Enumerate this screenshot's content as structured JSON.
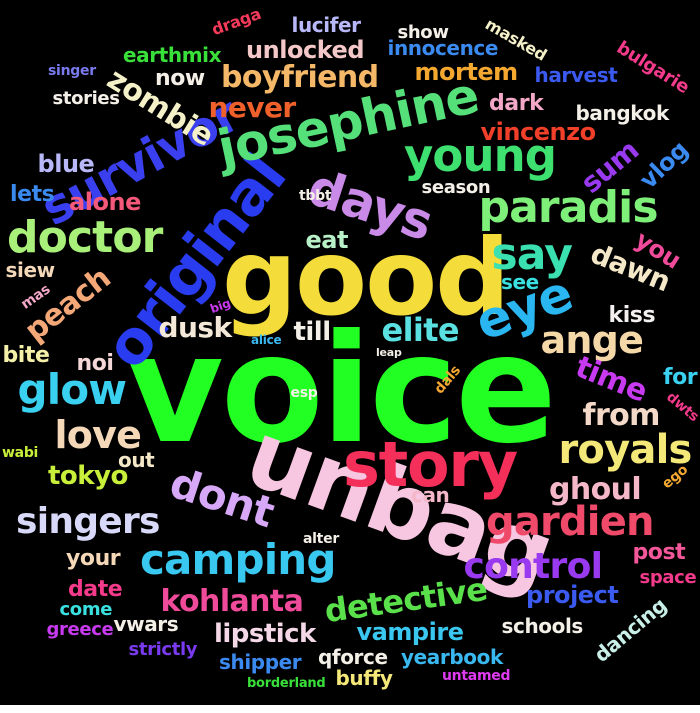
{
  "background": "#000000",
  "words": [
    {
      "text": "voice",
      "color": "#22ff22"
    },
    {
      "text": "good",
      "color": "#f4dc3a"
    },
    {
      "text": "unbag",
      "color": "#f7c6e0"
    },
    {
      "text": "original",
      "color": "#2a3cf0"
    },
    {
      "text": "story",
      "color": "#f4305a"
    },
    {
      "text": "survivor",
      "color": "#3a40f0"
    },
    {
      "text": "josephine",
      "color": "#55e07a"
    },
    {
      "text": "days",
      "color": "#c98ae8"
    },
    {
      "text": "young",
      "color": "#3ee070"
    },
    {
      "text": "paradis",
      "color": "#7ef07a"
    },
    {
      "text": "doctor",
      "color": "#a8f07a"
    },
    {
      "text": "say",
      "color": "#3ae0b0"
    },
    {
      "text": "eye",
      "color": "#2ab6f0"
    },
    {
      "text": "camping",
      "color": "#38c8f0"
    },
    {
      "text": "gardien",
      "color": "#f04a6a"
    },
    {
      "text": "dont",
      "color": "#d8a8f8"
    },
    {
      "text": "royals",
      "color": "#f4e878"
    },
    {
      "text": "glow",
      "color": "#3ad0f0"
    },
    {
      "text": "singers",
      "color": "#d8d8f8"
    },
    {
      "text": "control",
      "color": "#9a3af0"
    },
    {
      "text": "detective",
      "color": "#5ae04a"
    },
    {
      "text": "kohlanta",
      "color": "#f04a9a"
    },
    {
      "text": "ange",
      "color": "#f4d8a8"
    },
    {
      "text": "love",
      "color": "#f4d8b8"
    },
    {
      "text": "zombie",
      "color": "#f4f0c8"
    },
    {
      "text": "peach",
      "color": "#f4a878"
    },
    {
      "text": "elite",
      "color": "#5ae0e0"
    },
    {
      "text": "ghoul",
      "color": "#f4b8c8"
    },
    {
      "text": "dawn",
      "color": "#f4e8c8"
    },
    {
      "text": "from",
      "color": "#f4d8c8"
    },
    {
      "text": "time",
      "color": "#c83af0"
    },
    {
      "text": "boyfriend",
      "color": "#f4b868"
    },
    {
      "text": "unlocked",
      "color": "#f4c8c8"
    },
    {
      "text": "vincenzo",
      "color": "#f0402a"
    },
    {
      "text": "never",
      "color": "#f0602a"
    },
    {
      "text": "mortem",
      "color": "#f4a830"
    },
    {
      "text": "dusk",
      "color": "#f4e8d8"
    },
    {
      "text": "lipstick",
      "color": "#f4d8e8"
    },
    {
      "text": "vampire",
      "color": "#3ac8f0"
    },
    {
      "text": "project",
      "color": "#3a5af0"
    },
    {
      "text": "tokyo",
      "color": "#c8f03a"
    },
    {
      "text": "sum",
      "color": "#9a3af0"
    },
    {
      "text": "you",
      "color": "#f04a9a"
    },
    {
      "text": "blue",
      "color": "#b8b8f8"
    },
    {
      "text": "till",
      "color": "#f4f0e8"
    },
    {
      "text": "dark",
      "color": "#f4a8c8"
    },
    {
      "text": "alone",
      "color": "#f4587a"
    },
    {
      "text": "eat",
      "color": "#b8f0c8"
    },
    {
      "text": "vlog",
      "color": "#3a8af0"
    },
    {
      "text": "noi",
      "color": "#f4d8d8"
    },
    {
      "text": "kiss",
      "color": "#f4f0f0"
    },
    {
      "text": "your",
      "color": "#f4d8b8"
    },
    {
      "text": "post",
      "color": "#f4589a"
    },
    {
      "text": "date",
      "color": "#f43a8a"
    },
    {
      "text": "lets",
      "color": "#3a8af0"
    },
    {
      "text": "siew",
      "color": "#f4d8b8"
    },
    {
      "text": "see",
      "color": "#3ae0e0"
    },
    {
      "text": "bite",
      "color": "#f4f0a8"
    },
    {
      "text": "for",
      "color": "#3ad0f0"
    },
    {
      "text": "out",
      "color": "#f4e8c8"
    },
    {
      "text": "can",
      "color": "#f4b8c8"
    },
    {
      "text": "now",
      "color": "#f4f0e8"
    },
    {
      "text": "innocence",
      "color": "#3a8af0"
    },
    {
      "text": "harvest",
      "color": "#3a5af0"
    },
    {
      "text": "bangkok",
      "color": "#f4f0e8"
    },
    {
      "text": "vwars",
      "color": "#f4f0e8"
    },
    {
      "text": "schools",
      "color": "#f4f0e8"
    },
    {
      "text": "shipper",
      "color": "#3a8af0"
    },
    {
      "text": "qforce",
      "color": "#f4f0e8"
    },
    {
      "text": "yearbook",
      "color": "#3ab8f0"
    },
    {
      "text": "dancing",
      "color": "#c8f0e8"
    },
    {
      "text": "space",
      "color": "#f43a8a"
    },
    {
      "text": "buffy",
      "color": "#f4e878"
    },
    {
      "text": "earthmix",
      "color": "#3ae03a"
    },
    {
      "text": "lucifer",
      "color": "#b8b8f8"
    },
    {
      "text": "show",
      "color": "#f4f0e8"
    },
    {
      "text": "stories",
      "color": "#f4f0e8"
    },
    {
      "text": "season",
      "color": "#f4f0e8"
    },
    {
      "text": "greece",
      "color": "#c83af0"
    },
    {
      "text": "strictly",
      "color": "#7a3af0"
    },
    {
      "text": "come",
      "color": "#3ae0e0"
    },
    {
      "text": "bulgarie",
      "color": "#f43a8a"
    },
    {
      "text": "masked",
      "color": "#f4f0c8"
    },
    {
      "text": "draga",
      "color": "#f43a5a"
    },
    {
      "text": "singer",
      "color": "#7a7af0"
    },
    {
      "text": "tbbt",
      "color": "#f4f0e8"
    },
    {
      "text": "alter",
      "color": "#f4f0e8"
    },
    {
      "text": "esp",
      "color": "#f4f0e8"
    },
    {
      "text": "dals",
      "color": "#f4a830"
    },
    {
      "text": "dwts",
      "color": "#f43a8a"
    },
    {
      "text": "ego",
      "color": "#f4a830"
    },
    {
      "text": "wabi",
      "color": "#c8f03a"
    },
    {
      "text": "mas",
      "color": "#f4a8c8"
    },
    {
      "text": "big",
      "color": "#c83af0"
    },
    {
      "text": "alice",
      "color": "#3ab8f0"
    },
    {
      "text": "leap",
      "color": "#f4f0e8"
    },
    {
      "text": "borderland",
      "color": "#3ae03a"
    },
    {
      "text": "untamed",
      "color": "#e03af0"
    }
  ]
}
